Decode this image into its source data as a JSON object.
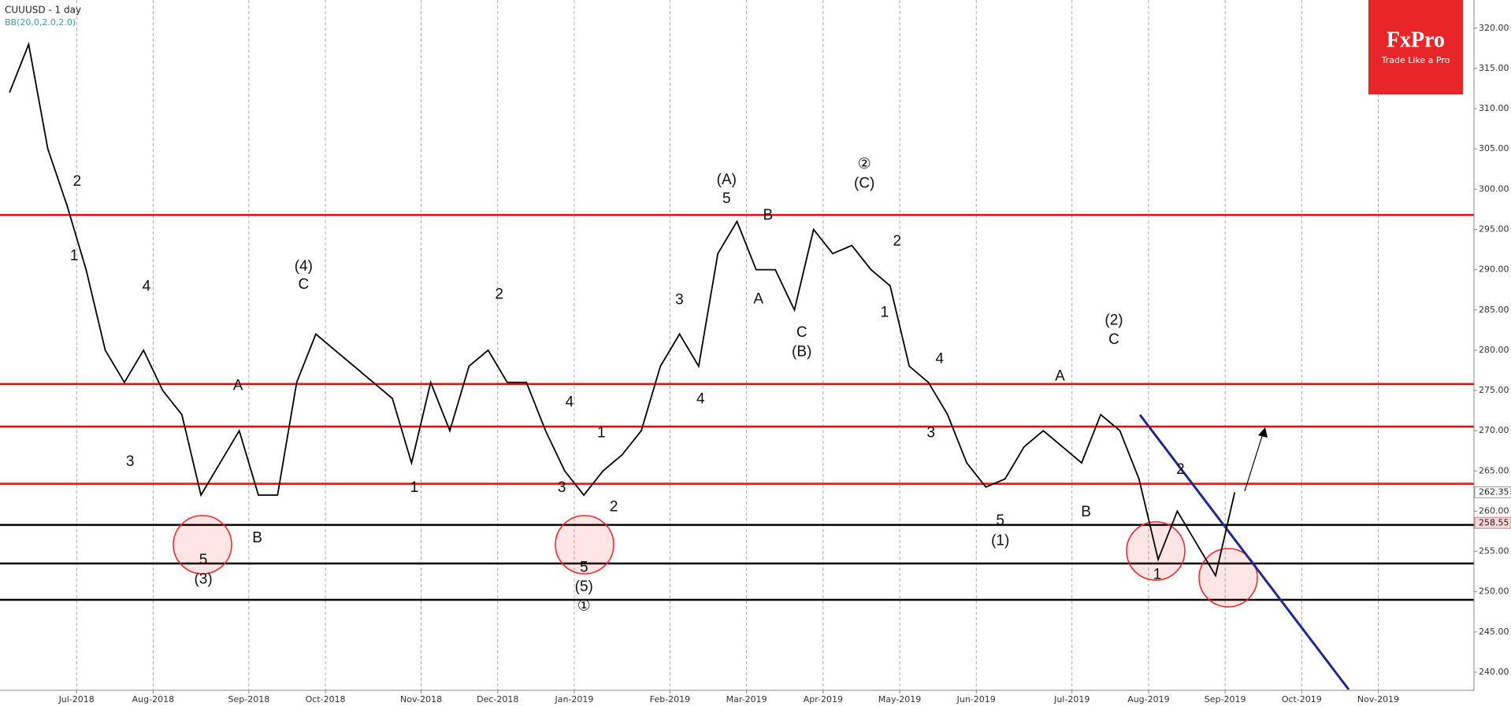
{
  "chart_data": {
    "type": "line",
    "title": "CUUUSD - 1 day",
    "indicator": "BB(20,0,2.0,2.0)",
    "logo": {
      "brand": "FxPro",
      "tagline": "Trade Like a Pro"
    },
    "categories": [
      null,
      null,
      null,
      null,
      "Jul-2018",
      null,
      null,
      null,
      "Aug-2018",
      null,
      null,
      null,
      null,
      "Sep-2018",
      null,
      null,
      null,
      "Oct-2018",
      null,
      null,
      null,
      null,
      "Nov-2018",
      null,
      null,
      null,
      "Dec-2018",
      null,
      null,
      null,
      "Jan-2019",
      null,
      null,
      null,
      null,
      "Feb-2019",
      null,
      null,
      null,
      "Mar-2019",
      null,
      null,
      null,
      "Apr-2019",
      null,
      null,
      null,
      "May-2019",
      null,
      null,
      null,
      "Jun-2019",
      null,
      null,
      null,
      null,
      "Jul-2019",
      null,
      null,
      null,
      "Aug-2019",
      null,
      null,
      null,
      "Sep-2019",
      null,
      null,
      null,
      "Oct-2019",
      null,
      null,
      null,
      "Nov-2019",
      null,
      null,
      null,
      null
    ],
    "series": [
      {
        "name": "CUUUSD",
        "color": "#000000",
        "values": [
          312,
          318,
          305,
          298,
          290,
          280,
          276,
          280,
          275,
          272,
          262,
          266,
          270,
          262,
          262,
          276,
          282,
          280,
          278,
          276,
          274,
          266,
          276,
          270,
          278,
          280,
          276,
          276,
          270,
          265,
          262,
          265,
          267,
          270,
          278,
          282,
          278,
          292,
          296,
          290,
          290,
          285,
          295,
          292,
          293,
          290,
          288,
          278,
          276,
          272,
          266,
          263,
          264,
          268,
          270,
          268,
          266,
          272,
          270,
          264,
          254,
          260,
          256,
          252,
          262.35,
          null,
          null,
          null,
          null,
          null,
          null,
          null,
          null,
          null,
          null,
          null,
          null
        ]
      }
    ],
    "ylim": [
      237.75,
      323.5
    ],
    "yticks": [
      {
        "value": 240,
        "label": "240.00"
      },
      {
        "value": 245,
        "label": "245.00"
      },
      {
        "value": 250,
        "label": "250.00"
      },
      {
        "value": 255,
        "label": "255.00"
      },
      {
        "value": 260,
        "label": "260.00"
      },
      {
        "value": 265,
        "label": "265.00"
      },
      {
        "value": 270,
        "label": "270.00"
      },
      {
        "value": 275,
        "label": "275.00"
      },
      {
        "value": 280,
        "label": "280.00"
      },
      {
        "value": 285,
        "label": "285.00"
      },
      {
        "value": 290,
        "label": "290.00"
      },
      {
        "value": 295,
        "label": "295.00"
      },
      {
        "value": 300,
        "label": "300.00"
      },
      {
        "value": 305,
        "label": "305.00"
      },
      {
        "value": 310,
        "label": "310.00"
      },
      {
        "value": 315,
        "label": "315.00"
      },
      {
        "value": 320,
        "label": "320.00"
      }
    ],
    "grid": true,
    "hlines": [
      {
        "value": 296.8,
        "color": "#ff0000"
      },
      {
        "value": 275.8,
        "color": "#ff0000"
      },
      {
        "value": 270.5,
        "color": "#ff0000"
      },
      {
        "value": 263.4,
        "color": "#ff0000"
      },
      {
        "value": 258.3,
        "color": "#000000"
      },
      {
        "value": 253.5,
        "color": "#000000"
      },
      {
        "value": 249,
        "color": "#000000"
      }
    ],
    "price_tags": [
      262.35,
      258.55
    ],
    "annotations": [
      "2",
      "1",
      "4",
      "3",
      "A",
      "B",
      "5",
      "(3)",
      "(4)",
      "C",
      "1",
      "2",
      "4",
      "1",
      "3",
      "2",
      "5",
      "(5)",
      "①",
      "3",
      "4",
      "(A)",
      "5",
      "B",
      "A",
      "C",
      "(B)",
      "②",
      "(C)",
      "2",
      "1",
      "4",
      "3",
      "5",
      "(1)",
      "A",
      "B",
      "(2)",
      "C",
      "2",
      "1"
    ]
  }
}
